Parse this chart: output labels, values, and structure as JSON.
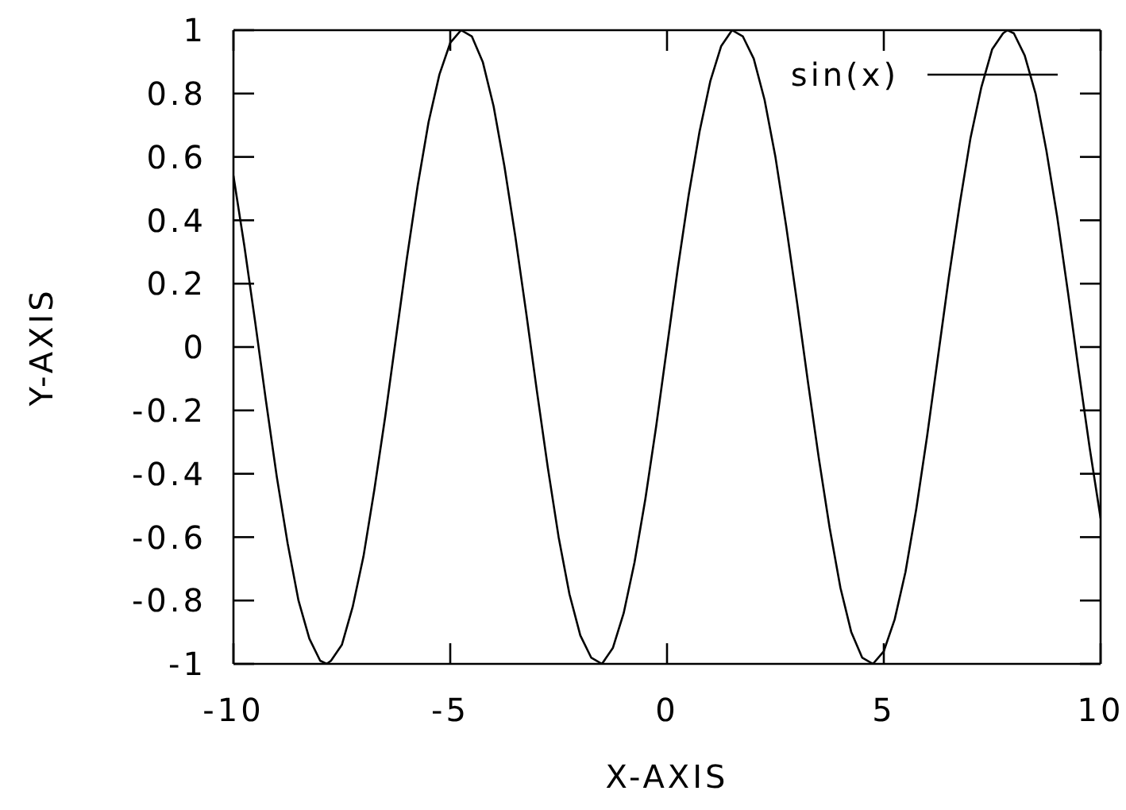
{
  "chart_data": {
    "type": "line",
    "xlabel": "X-AXIS",
    "ylabel": "Y-AXIS",
    "x": [
      -10,
      -9.75,
      -9.5,
      -9.25,
      -9,
      -8.75,
      -8.5,
      -8.25,
      -8,
      -7.85,
      -7.75,
      -7.5,
      -7.25,
      -7,
      -6.75,
      -6.5,
      -6.25,
      -6,
      -5.75,
      -5.5,
      -5.25,
      -5,
      -4.75,
      -4.5,
      -4.25,
      -4,
      -3.75,
      -3.5,
      -3.25,
      -3,
      -2.75,
      -2.5,
      -2.25,
      -2,
      -1.75,
      -1.5,
      -1.25,
      -1,
      -0.75,
      -0.5,
      -0.25,
      0,
      0.25,
      0.5,
      0.75,
      1,
      1.25,
      1.5,
      1.75,
      2,
      2.25,
      2.5,
      2.75,
      3,
      3.25,
      3.5,
      3.75,
      4,
      4.25,
      4.5,
      4.75,
      5,
      5.25,
      5.5,
      5.75,
      6,
      6.25,
      6.5,
      6.75,
      7,
      7.25,
      7.5,
      7.75,
      7.85,
      8,
      8.25,
      8.5,
      8.75,
      9,
      9.25,
      9.5,
      9.75,
      10
    ],
    "series": [
      {
        "name": "sin(x)",
        "color": "#000000",
        "values": [
          0.54,
          0.32,
          0.08,
          -0.17,
          -0.41,
          -0.62,
          -0.8,
          -0.92,
          -0.99,
          -1,
          -0.99,
          -0.94,
          -0.82,
          -0.66,
          -0.45,
          -0.22,
          0.03,
          0.28,
          0.51,
          0.71,
          0.86,
          0.96,
          1,
          0.98,
          0.9,
          0.76,
          0.57,
          0.35,
          0.11,
          -0.14,
          -0.38,
          -0.6,
          -0.78,
          -0.91,
          -0.98,
          -1,
          -0.95,
          -0.84,
          -0.68,
          -0.48,
          -0.25,
          0,
          0.25,
          0.48,
          0.68,
          0.84,
          0.95,
          1,
          0.98,
          0.91,
          0.78,
          0.6,
          0.38,
          0.14,
          -0.11,
          -0.35,
          -0.57,
          -0.76,
          -0.9,
          -0.98,
          -1,
          -0.96,
          -0.86,
          -0.71,
          -0.51,
          -0.28,
          -0.03,
          0.22,
          0.45,
          0.66,
          0.82,
          0.94,
          0.99,
          1,
          0.99,
          0.92,
          0.8,
          0.62,
          0.41,
          0.17,
          -0.08,
          -0.32,
          -0.54
        ]
      }
    ],
    "xlim": [
      -10,
      10
    ],
    "ylim": [
      -1,
      1
    ],
    "xticks": [
      -10,
      -5,
      0,
      5,
      10
    ],
    "yticks": [
      -1,
      -0.8,
      -0.6,
      -0.4,
      -0.2,
      0,
      0.2,
      0.4,
      0.6,
      0.8,
      1
    ],
    "legend": "top right",
    "marker": "none",
    "line_style": "solid"
  }
}
